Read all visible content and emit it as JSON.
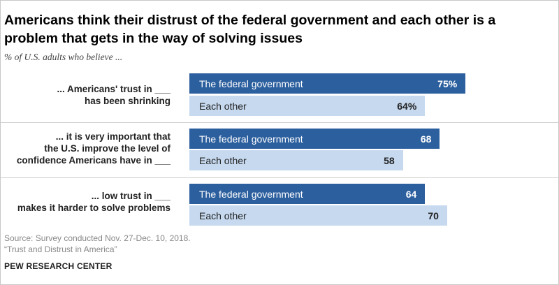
{
  "title": "Americans think their distrust of the federal government and each other is a problem that gets in the way of solving issues",
  "subtitle": "% of U.S. adults who believe ...",
  "source": "Source: Survey conducted Nov. 27-Dec. 10, 2018.",
  "report": "“Trust and Distrust in America”",
  "brand": "PEW RESEARCH CENTER",
  "colors": {
    "federal": "#2c5f9e",
    "each_other": "#c6d9ef"
  },
  "chart_data": {
    "type": "bar",
    "orientation": "horizontal",
    "title": "Americans think their distrust of the federal government and each other is a problem that gets in the way of solving issues",
    "subtitle": "% of U.S. adults who believe ...",
    "categories": [
      "... Americans' trust in ___ has been shrinking",
      "... it is very important that the U.S. improve the level of confidence Americans have in ___",
      "... low trust in ___ makes it harder to solve problems"
    ],
    "category_labels": [
      "... Americans' trust in ___\nhas been shrinking",
      "... it is very important that\nthe U.S. improve the level of\nconfidence Americans have in ___",
      "... low trust in ___\nmakes it harder to solve problems"
    ],
    "series": [
      {
        "name": "The federal government",
        "values": [
          75,
          68,
          64
        ],
        "labels": [
          "75%",
          "68",
          "64"
        ]
      },
      {
        "name": "Each other",
        "values": [
          64,
          58,
          70
        ],
        "labels": [
          "64%",
          "58",
          "70"
        ]
      }
    ],
    "xlim": [
      0,
      100
    ],
    "grid": false,
    "legend": "none"
  }
}
